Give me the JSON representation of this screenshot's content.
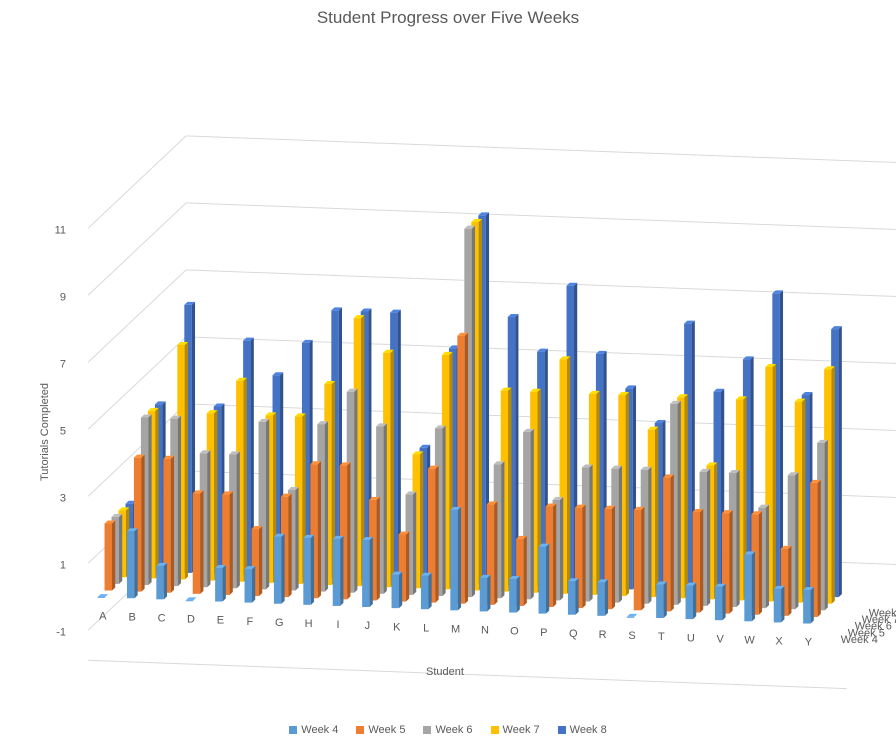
{
  "chart_data": {
    "type": "bar",
    "title": "Student Progress over Five Weeks",
    "xlabel": "Student",
    "ylabel": "Tutorials Completed",
    "ylim": [
      -1,
      11
    ],
    "yticks": [
      -1,
      1,
      3,
      5,
      7,
      9,
      11
    ],
    "grid": true,
    "legend": "bottom",
    "categories": [
      "A",
      "B",
      "C",
      "D",
      "E",
      "F",
      "G",
      "H",
      "I",
      "J",
      "K",
      "L",
      "M",
      "N",
      "O",
      "P",
      "Q",
      "R",
      "S",
      "T",
      "U",
      "V",
      "W",
      "X",
      "Y"
    ],
    "series": [
      {
        "name": "Week 4",
        "color": "#5B9BD5",
        "values": [
          0,
          2,
          1,
          0,
          1,
          1,
          2,
          2,
          2,
          2,
          1,
          1,
          3,
          1,
          1,
          2,
          1,
          1,
          0,
          1,
          1,
          1,
          2,
          1,
          1
        ]
      },
      {
        "name": "Week 5",
        "color": "#ED7D31",
        "values": [
          2,
          4,
          4,
          3,
          3,
          2,
          3,
          4,
          4,
          3,
          2,
          4,
          8,
          3,
          2,
          3,
          3,
          3,
          3,
          4,
          3,
          3,
          3,
          2,
          4
        ]
      },
      {
        "name": "Week 6",
        "color": "#A5A5A5",
        "values": [
          2,
          5,
          5,
          4,
          4,
          5,
          3,
          5,
          6,
          5,
          3,
          5,
          11,
          4,
          5,
          3,
          4,
          4,
          4,
          6,
          4,
          4,
          3,
          4,
          5
        ]
      },
      {
        "name": "Week 7",
        "color": "#FFC000",
        "values": [
          2,
          5,
          7,
          5,
          6,
          5,
          5,
          6,
          8,
          7,
          4,
          7,
          11,
          6,
          6,
          7,
          6,
          6,
          5,
          6,
          4,
          6,
          7,
          6,
          7
        ]
      },
      {
        "name": "Week 8",
        "color": "#4472C4",
        "values": [
          2,
          5,
          8,
          5,
          7,
          6,
          7,
          8,
          8,
          8,
          4,
          7,
          11,
          8,
          7,
          9,
          7,
          6,
          5,
          8,
          6,
          7,
          9,
          6,
          8
        ]
      }
    ]
  }
}
